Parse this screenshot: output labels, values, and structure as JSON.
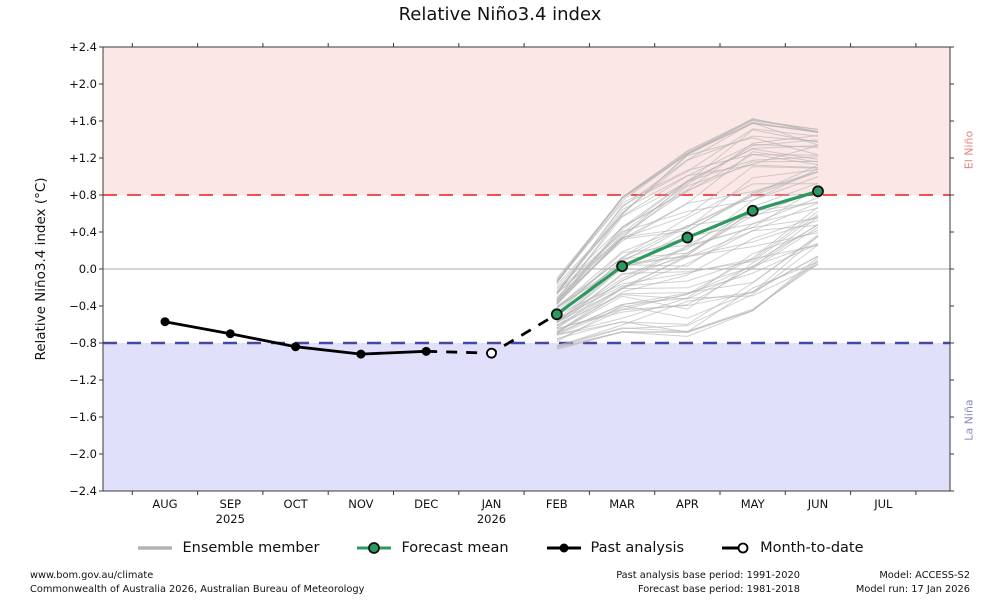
{
  "chart_data": {
    "type": "line",
    "title": "Relative Niño3.4 index",
    "ylabel": "Relative Niño3.4 index (°C)",
    "ylim": [
      -2.4,
      2.4
    ],
    "ytick_step": 0.4,
    "ytick_labels": [
      "+2.4",
      "+2.0",
      "+1.6",
      "+1.2",
      "+0.8",
      "+0.4",
      "0.0",
      "−0.4",
      "−0.8",
      "−1.2",
      "−1.6",
      "−2.0",
      "−2.4"
    ],
    "months": [
      {
        "label": "AUG"
      },
      {
        "label": "SEP",
        "year": "2025"
      },
      {
        "label": "OCT"
      },
      {
        "label": "NOV"
      },
      {
        "label": "DEC"
      },
      {
        "label": "JAN",
        "year": "2026"
      },
      {
        "label": "FEB"
      },
      {
        "label": "MAR"
      },
      {
        "label": "APR"
      },
      {
        "label": "MAY"
      },
      {
        "label": "JUN"
      },
      {
        "label": "JUL"
      }
    ],
    "bands": [
      {
        "name": "el-nino",
        "from": 0.8,
        "to": 2.4,
        "color": "#fbe7e6",
        "label": "El Niño",
        "label_color": "#e58282"
      },
      {
        "name": "la-nina",
        "from": -2.4,
        "to": -0.8,
        "color": "#e0e0fa",
        "label": "La Niña",
        "label_color": "#8a8ac0"
      }
    ],
    "threshold_lines": [
      {
        "name": "el-nino-threshold-line",
        "value": 0.8,
        "color": "#f25050",
        "style": "dashed",
        "width": 2
      },
      {
        "name": "la-nina-threshold-line",
        "value": -0.8,
        "color": "#4747a8",
        "style": "dashed",
        "width": 2.4
      },
      {
        "name": "zero-line",
        "value": 0.0,
        "color": "#a8a8a8",
        "style": "solid",
        "width": 1
      }
    ],
    "series": [
      {
        "name": "Ensemble member",
        "kind": "ensemble",
        "color": "#b3b3b3",
        "count": 72,
        "months": [
          "FEB",
          "MAR",
          "APR",
          "MAY",
          "JUN"
        ],
        "envelope_min": [
          -0.85,
          -0.68,
          -0.72,
          -0.45,
          0.05
        ],
        "envelope_max": [
          -0.12,
          0.78,
          1.28,
          1.62,
          1.52
        ]
      },
      {
        "name": "Forecast mean",
        "kind": "line-markers",
        "color": "#2b9960",
        "edge_color": "#111111",
        "months": [
          "FEB",
          "MAR",
          "APR",
          "MAY",
          "JUN"
        ],
        "values": [
          -0.49,
          0.03,
          0.34,
          0.63,
          0.84
        ]
      },
      {
        "name": "Past analysis",
        "kind": "line-markers",
        "color": "#000000",
        "edge_color": "#000000",
        "months": [
          "AUG",
          "SEP",
          "OCT",
          "NOV",
          "DEC"
        ],
        "values": [
          -0.57,
          -0.7,
          -0.84,
          -0.92,
          -0.89
        ]
      },
      {
        "name": "Month-to-date",
        "kind": "open-marker",
        "color": "#000000",
        "months": [
          "JAN"
        ],
        "values": [
          -0.91
        ],
        "connector": {
          "months": [
            "DEC",
            "JAN",
            "FEB"
          ],
          "values": [
            -0.89,
            -0.91,
            -0.49
          ]
        }
      }
    ]
  },
  "legend": {
    "items": [
      {
        "label": "Ensemble member"
      },
      {
        "label": "Forecast mean"
      },
      {
        "label": "Past analysis"
      },
      {
        "label": "Month-to-date"
      }
    ]
  },
  "footer": {
    "left_line1": "www.bom.gov.au/climate",
    "left_line2": "Commonwealth of Australia 2026, Australian Bureau of Meteorology",
    "center_line1": "Past analysis base period: 1991-2020",
    "center_line2": "Forecast base period: 1981-2018",
    "right_line1": "Model: ACCESS-S2",
    "right_line2": "Model run: 17 Jan 2026"
  }
}
